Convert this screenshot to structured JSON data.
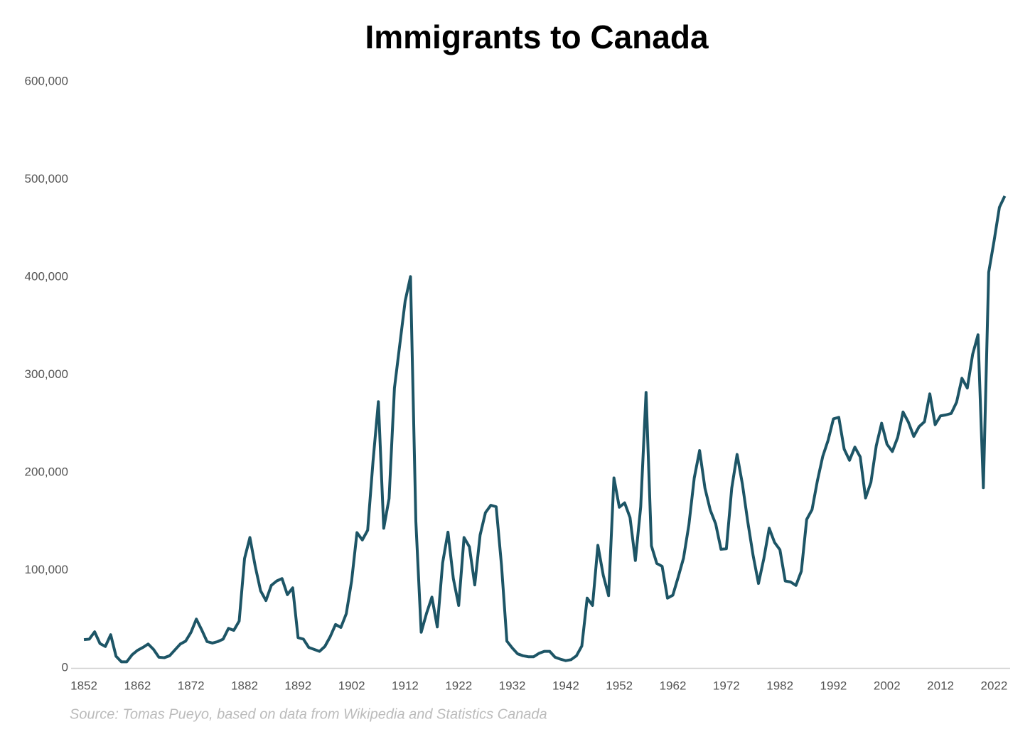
{
  "chart_data": {
    "type": "line",
    "title": "Immigrants to Canada",
    "annotation": "Source: Tomas Pueyo, based on data from Wikipedia and Statistics Canada",
    "x": [
      1852,
      1853,
      1854,
      1855,
      1856,
      1857,
      1858,
      1859,
      1860,
      1861,
      1862,
      1863,
      1864,
      1865,
      1866,
      1867,
      1868,
      1869,
      1870,
      1871,
      1872,
      1873,
      1874,
      1875,
      1876,
      1877,
      1878,
      1879,
      1880,
      1881,
      1882,
      1883,
      1884,
      1885,
      1886,
      1887,
      1888,
      1889,
      1890,
      1891,
      1892,
      1893,
      1894,
      1895,
      1896,
      1897,
      1898,
      1899,
      1900,
      1901,
      1902,
      1903,
      1904,
      1905,
      1906,
      1907,
      1908,
      1909,
      1910,
      1911,
      1912,
      1913,
      1914,
      1915,
      1916,
      1917,
      1918,
      1919,
      1920,
      1921,
      1922,
      1923,
      1924,
      1925,
      1926,
      1927,
      1928,
      1929,
      1930,
      1931,
      1932,
      1933,
      1934,
      1935,
      1936,
      1937,
      1938,
      1939,
      1940,
      1941,
      1942,
      1943,
      1944,
      1945,
      1946,
      1947,
      1948,
      1949,
      1950,
      1951,
      1952,
      1953,
      1954,
      1955,
      1956,
      1957,
      1958,
      1959,
      1960,
      1961,
      1962,
      1963,
      1964,
      1965,
      1966,
      1967,
      1968,
      1969,
      1970,
      1971,
      1972,
      1973,
      1974,
      1975,
      1976,
      1977,
      1978,
      1979,
      1980,
      1981,
      1982,
      1983,
      1984,
      1985,
      1986,
      1987,
      1988,
      1989,
      1990,
      1991,
      1992,
      1993,
      1994,
      1995,
      1996,
      1997,
      1998,
      1999,
      2000,
      2001,
      2002,
      2003,
      2004,
      2005,
      2006,
      2007,
      2008,
      2009,
      2010,
      2011,
      2012,
      2013,
      2014,
      2015,
      2016,
      2017,
      2018,
      2019,
      2020,
      2021,
      2022,
      2023,
      2024
    ],
    "series": [
      {
        "name": "Immigrants",
        "color": "#1d5566",
        "values": [
          29000,
          29500,
          37000,
          25000,
          22000,
          34000,
          12000,
          6300,
          6300,
          13500,
          18000,
          21000,
          24500,
          19000,
          11000,
          10500,
          12500,
          18500,
          24500,
          27500,
          36500,
          50000,
          39000,
          27000,
          25500,
          27000,
          29500,
          40500,
          38500,
          48000,
          112000,
          133500,
          104000,
          79000,
          69000,
          84500,
          89000,
          91500,
          75000,
          82000,
          31000,
          29500,
          21000,
          19000,
          17000,
          22000,
          32000,
          44500,
          41500,
          55500,
          89000,
          138500,
          131000,
          141000,
          211500,
          272500,
          143000,
          173500,
          286500,
          331000,
          375500,
          400500,
          150000,
          36500,
          56000,
          72500,
          42000,
          107500,
          139000,
          91500,
          64000,
          133500,
          124000,
          85000,
          136000,
          159000,
          166500,
          165000,
          105000,
          27500,
          20500,
          14500,
          12500,
          11500,
          11500,
          15000,
          17000,
          17000,
          11000,
          9000,
          7500,
          8500,
          12500,
          22500,
          71500,
          64000,
          125500,
          95000,
          74000,
          194500,
          164500,
          169000,
          154000,
          110000,
          165000,
          282000,
          125000,
          107000,
          104000,
          71500,
          74500,
          93000,
          112500,
          146500,
          194500,
          222500,
          184000,
          161500,
          147500,
          121500,
          122000,
          184000,
          218500,
          188000,
          149500,
          115000,
          86500,
          112000,
          143000,
          128500,
          121000,
          89000,
          88000,
          84500,
          99000,
          152000,
          162000,
          191500,
          216500,
          233000,
          255000,
          256500,
          224000,
          212500,
          226000,
          216000,
          174000,
          190000,
          227500,
          250500,
          229000,
          221500,
          236000,
          262000,
          251500,
          237000,
          247000,
          252000,
          280500,
          249000,
          258000,
          259000,
          260500,
          272000,
          296500,
          286500,
          321000,
          341000,
          184500,
          405000,
          437000,
          471500,
          483000
        ]
      }
    ],
    "xlim": [
      1850,
      2025
    ],
    "xticks": [
      1852,
      1862,
      1872,
      1882,
      1892,
      1902,
      1912,
      1922,
      1932,
      1942,
      1952,
      1962,
      1972,
      1982,
      1992,
      2002,
      2012,
      2022
    ],
    "ylim": [
      0,
      600000
    ],
    "yticks": [
      0,
      {
        "value": 100000,
        "label": "100,000"
      },
      {
        "value": 200000,
        "label": "200,000"
      },
      {
        "value": 300000,
        "label": "300,000"
      },
      {
        "value": 400000,
        "label": "400,000"
      },
      {
        "value": 500000,
        "label": "500,000"
      },
      {
        "value": 600000,
        "label": "600,000"
      }
    ],
    "grid": false
  }
}
